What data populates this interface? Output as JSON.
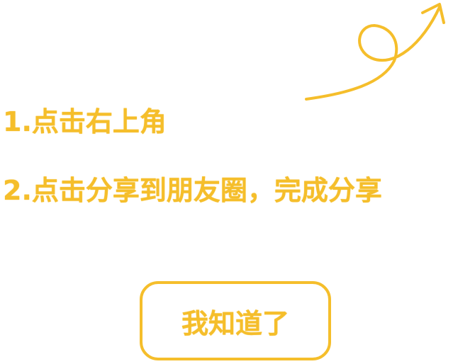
{
  "theme": {
    "accent_color": "#f5be2b",
    "background_color": "#ffffff"
  },
  "guide": {
    "pointer_icon": "curly-arrow-up-right-icon",
    "steps": [
      {
        "label": "1.点击右上角"
      },
      {
        "label": "2.点击分享到朋友圈，完成分享"
      }
    ],
    "confirm_label": "我知道了"
  }
}
